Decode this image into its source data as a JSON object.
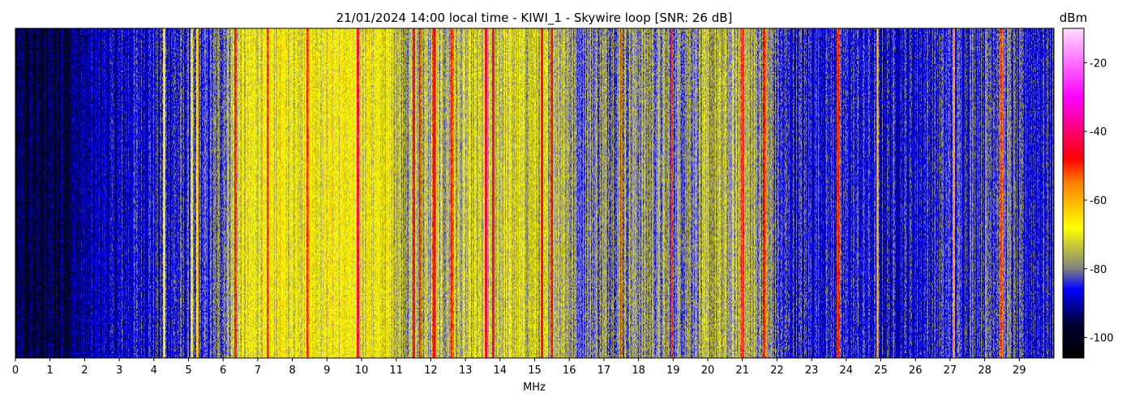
{
  "chart_data": {
    "type": "heatmap",
    "title": "21/01/2024 14:00 local time - KIWI_1 - Skywire loop [SNR: 26 dB]",
    "xlabel": "MHz",
    "ylabel": "",
    "xlim": [
      0,
      30
    ],
    "x_ticks": [
      "0",
      "1",
      "2",
      "3",
      "4",
      "5",
      "6",
      "7",
      "8",
      "9",
      "10",
      "11",
      "12",
      "13",
      "14",
      "15",
      "16",
      "17",
      "18",
      "19",
      "20",
      "21",
      "22",
      "23",
      "24",
      "25",
      "26",
      "27",
      "28",
      "29"
    ],
    "colorbar": {
      "label": "dBm",
      "range": [
        -106,
        -10
      ],
      "ticks": [
        "-20",
        "-40",
        "-60",
        "-80",
        "-100"
      ],
      "tick_values": [
        -20,
        -40,
        -60,
        -80,
        -100
      ],
      "colormap": [
        {
          "value": -106,
          "color": "#000000"
        },
        {
          "value": -96,
          "color": "#000033"
        },
        {
          "value": -86,
          "color": "#0000ff"
        },
        {
          "value": -80,
          "color": "#808080"
        },
        {
          "value": -68,
          "color": "#ffff00"
        },
        {
          "value": -55,
          "color": "#ff8000"
        },
        {
          "value": -48,
          "color": "#ff0000"
        },
        {
          "value": -30,
          "color": "#ff00ff"
        },
        {
          "value": -10,
          "color": "#ffddff"
        }
      ]
    },
    "noise_floor_profile": {
      "x": [
        0,
        1,
        2,
        2.8,
        3.5,
        4.5,
        5.5,
        6,
        6.3,
        7,
        8,
        9,
        10,
        10.9,
        11.2,
        12,
        13,
        14,
        15,
        15.8,
        16.2,
        17,
        18,
        19,
        20,
        21,
        21.8,
        22.2,
        23,
        24,
        25,
        26,
        27,
        28,
        28.6,
        29,
        30
      ],
      "level": [
        -97,
        -95,
        -92,
        -89,
        -86,
        -85,
        -84,
        -80,
        -74,
        -70,
        -70,
        -69,
        -70,
        -72,
        -76,
        -76,
        -75,
        -73,
        -74,
        -74,
        -80,
        -79,
        -78,
        -79,
        -77,
        -76,
        -79,
        -85,
        -85,
        -85,
        -86,
        -86,
        -84,
        -82,
        -80,
        -85,
        -85
      ]
    },
    "strong_lines": [
      {
        "x": 4.3,
        "level": -68
      },
      {
        "x": 5.1,
        "level": -70
      },
      {
        "x": 5.25,
        "level": -66
      },
      {
        "x": 6.35,
        "level": -52
      },
      {
        "x": 7.3,
        "level": -55
      },
      {
        "x": 8.45,
        "level": -52
      },
      {
        "x": 9.9,
        "level": -50
      },
      {
        "x": 11.5,
        "level": -48
      },
      {
        "x": 11.7,
        "level": -50
      },
      {
        "x": 12.1,
        "level": -50
      },
      {
        "x": 12.6,
        "level": -52
      },
      {
        "x": 13.6,
        "level": -48
      },
      {
        "x": 13.8,
        "level": -46
      },
      {
        "x": 15.2,
        "level": -48
      },
      {
        "x": 15.5,
        "level": -48
      },
      {
        "x": 17.5,
        "level": -52
      },
      {
        "x": 18.95,
        "level": -52
      },
      {
        "x": 21.0,
        "level": -52
      },
      {
        "x": 21.65,
        "level": -54
      },
      {
        "x": 23.75,
        "level": -50
      },
      {
        "x": 24.9,
        "level": -62
      },
      {
        "x": 27.1,
        "level": -62
      },
      {
        "x": 28.5,
        "level": -55
      }
    ]
  }
}
